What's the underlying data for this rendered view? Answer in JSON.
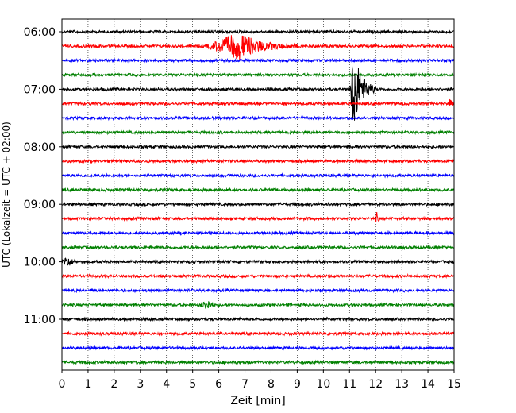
{
  "chart_data": {
    "type": "line",
    "xlabel": "Zeit  [min]",
    "ylabel": "UTC (Lokalzeit = UTC + 02:00)",
    "xlim": [
      0,
      15
    ],
    "x_ticks": [
      "0",
      "1",
      "2",
      "3",
      "4",
      "5",
      "6",
      "7",
      "8",
      "9",
      "10",
      "11",
      "12",
      "13",
      "14",
      "15"
    ],
    "y_ticks": [
      {
        "label": "06:00",
        "row": 0
      },
      {
        "label": "07:00",
        "row": 4
      },
      {
        "label": "08:00",
        "row": 8
      },
      {
        "label": "09:00",
        "row": 12
      },
      {
        "label": "10:00",
        "row": 16
      },
      {
        "label": "11:00",
        "row": 20
      }
    ],
    "trace_interval_min": 15,
    "trace_count": 24,
    "grid": "vertical-dotted",
    "colors": [
      "#000000",
      "#ff0000",
      "#0000ff",
      "#008000"
    ],
    "events": [
      {
        "row": 1,
        "start_min": 5.5,
        "peak_min": 6.8,
        "end_min": 9.0,
        "amplitude": 0.9
      },
      {
        "row": 4,
        "start_min": 11.0,
        "peak_min": 11.15,
        "end_min": 12.0,
        "amplitude": 3.0
      },
      {
        "row": 13,
        "start_min": 12.0,
        "peak_min": 12.05,
        "end_min": 12.2,
        "amplitude": 0.4
      },
      {
        "row": 16,
        "start_min": 0.0,
        "peak_min": 0.2,
        "end_min": 0.6,
        "amplitude": 0.4
      },
      {
        "row": 19,
        "start_min": 5.2,
        "peak_min": 5.6,
        "end_min": 6.0,
        "amplitude": 0.3
      }
    ]
  }
}
